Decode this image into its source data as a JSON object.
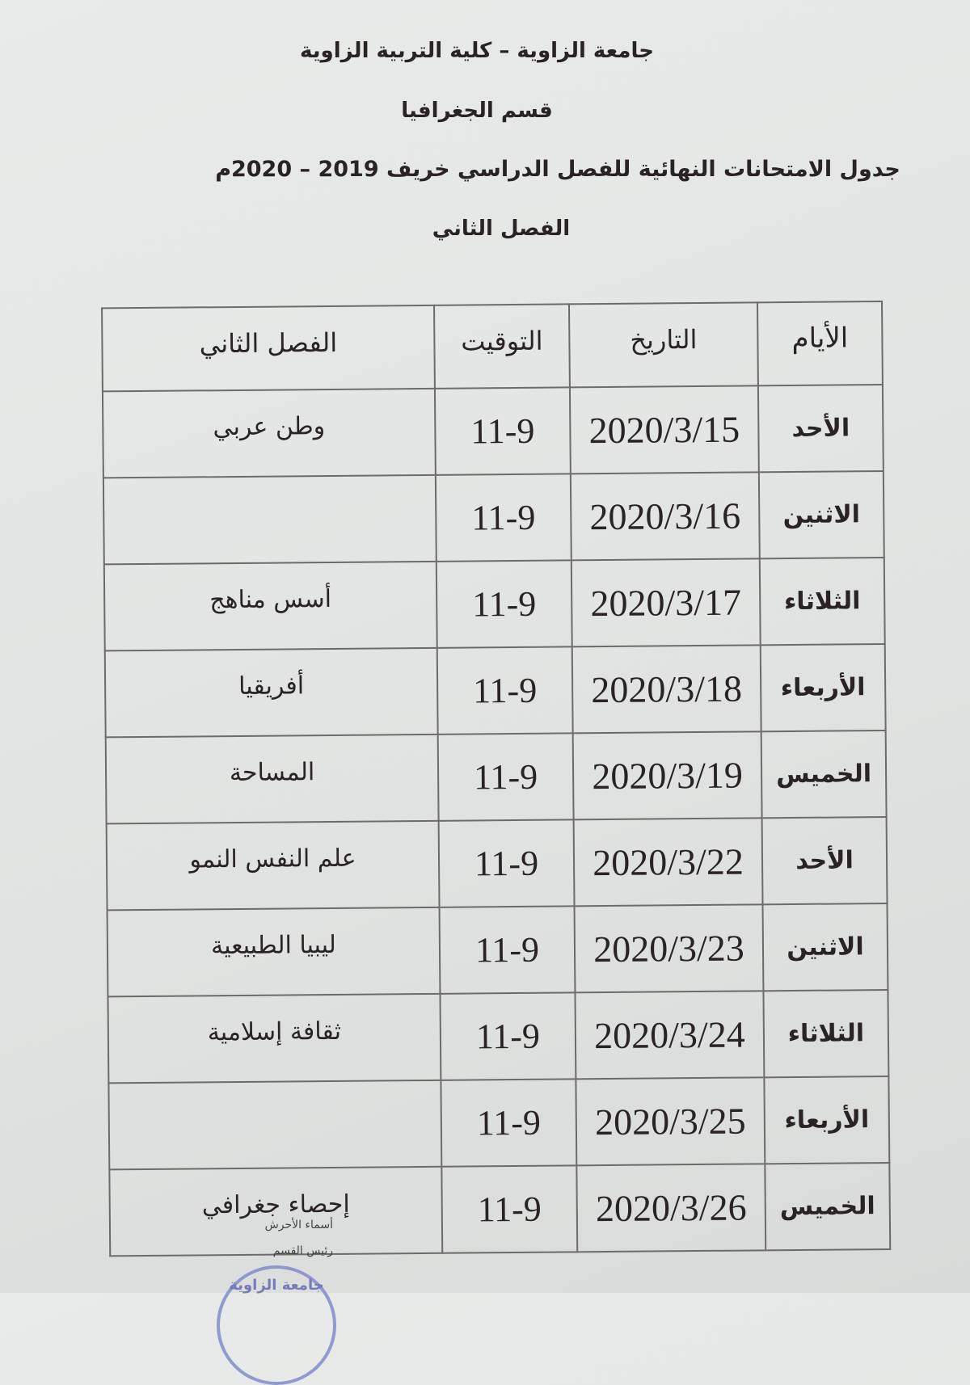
{
  "header": {
    "institution": "جامعة الزاوية – كلية التربية الزاوية",
    "department": "قسم الجغرافيا",
    "title": "جدول الامتحانات النهائية للفصل الدراسي خريف 2019 – 2020م",
    "semester": "الفصل الثاني"
  },
  "table": {
    "columns": [
      "الأيام",
      "التاريخ",
      "التوقيت",
      "الفصل الثاني"
    ],
    "rows": [
      {
        "day": "الأحد",
        "date": "2020/3/15",
        "time": "11-9",
        "subject": "وطن عربي"
      },
      {
        "day": "الاثنين",
        "date": "2020/3/16",
        "time": "11-9",
        "subject": ""
      },
      {
        "day": "الثلاثاء",
        "date": "2020/3/17",
        "time": "11-9",
        "subject": "أسس مناهج"
      },
      {
        "day": "الأربعاء",
        "date": "2020/3/18",
        "time": "11-9",
        "subject": "أفريقيا"
      },
      {
        "day": "الخميس",
        "date": "2020/3/19",
        "time": "11-9",
        "subject": "المساحة"
      },
      {
        "day": "الأحد",
        "date": "2020/3/22",
        "time": "11-9",
        "subject": "علم النفس النمو"
      },
      {
        "day": "الاثنين",
        "date": "2020/3/23",
        "time": "11-9",
        "subject": "ليبيا الطبيعية"
      },
      {
        "day": "الثلاثاء",
        "date": "2020/3/24",
        "time": "11-9",
        "subject": "ثقافة إسلامية"
      },
      {
        "day": "الأربعاء",
        "date": "2020/3/25",
        "time": "11-9",
        "subject": ""
      },
      {
        "day": "الخميس",
        "date": "2020/3/26",
        "time": "11-9",
        "subject": "إحصاء جغرافي"
      }
    ]
  },
  "signature": {
    "name": "أسماء الأحرش",
    "role": "رئيس القسم",
    "stamp_text": "جامعة الزاوية"
  },
  "colors": {
    "paper": "#e4e6e5",
    "ink": "#2a2326",
    "stamp": "#7c86c9"
  }
}
